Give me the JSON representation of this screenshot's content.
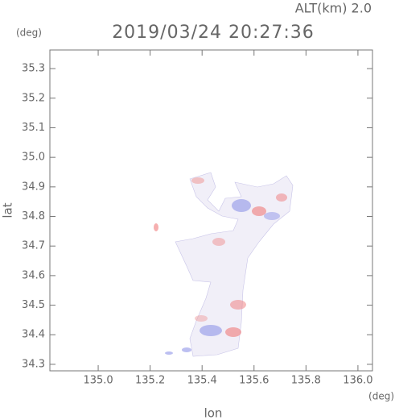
{
  "chart_data": {
    "type": "map",
    "title": "2019/03/24 20:27:36",
    "subtitle": "ALT(km) 2.0",
    "x_label": "lon",
    "y_label": "lat",
    "x_unit": "(deg)",
    "y_unit": "(deg)",
    "xlim": [
      134.814,
      136.056
    ],
    "xticks": [
      {
        "value": 135,
        "label": "135.0"
      },
      135.2,
      135.4,
      135.6,
      135.8,
      {
        "value": 136,
        "label": "136.0"
      }
    ],
    "ylim": [
      34.278,
      35.363
    ],
    "yticks": [
      34.3,
      34.4,
      34.5,
      34.6,
      34.7,
      34.8,
      34.9,
      {
        "value": 35,
        "label": "35.0"
      },
      35.1,
      35.2,
      35.3
    ],
    "grid": false
  }
}
